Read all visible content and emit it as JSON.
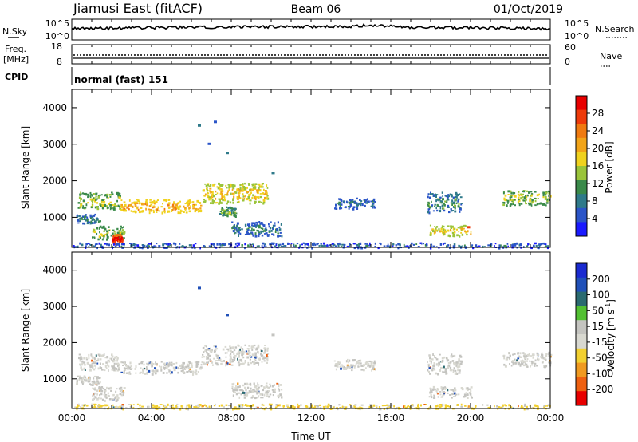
{
  "header": {
    "title": "Jiamusi East (fitACF)",
    "beam": "Beam 06",
    "date": "01/Oct/2019"
  },
  "strips": {
    "nsky_label": "N.Sky",
    "nsearch_label": "N.Search",
    "noise_ticks_left": [
      "10^5",
      "10^0"
    ],
    "noise_ticks_right": [
      "10^5",
      "10^0"
    ],
    "freq_label": "Freq.",
    "freq_unit": "[MHz]",
    "freq_ticks": [
      "18",
      "8"
    ],
    "nave_label": "Nave",
    "nave_ticks": [
      "60",
      "0"
    ],
    "cpid_label": "CPID",
    "cpid_value": "normal (fast) 151"
  },
  "colors": {
    "power": [
      "#1a1aff",
      "#2b55c8",
      "#2f7a8a",
      "#3a8a4a",
      "#9ac43a",
      "#f0d21e",
      "#f2a418",
      "#f07a10",
      "#ee3a0a",
      "#e80000"
    ],
    "velocity": [
      "#1a2ad0",
      "#2050b8",
      "#2a6a70",
      "#52c032",
      "#c4c4c0",
      "#d8d8d0",
      "#f2d030",
      "#f09a20",
      "#ee6010",
      "#e80000"
    ]
  },
  "chart_data": [
    {
      "type": "heatmap",
      "name": "power",
      "ylabel": "Slant Range [km]",
      "xlim": [
        0,
        24
      ],
      "ylim": [
        180,
        4500
      ],
      "yticks": [
        "1000",
        "2000",
        "3000",
        "4000"
      ],
      "colorbar_label": "Power [dB]",
      "colorbar_ticks": [
        "4",
        "8",
        "12",
        "16",
        "20",
        "24",
        "28"
      ],
      "colorbar_range": [
        0,
        30
      ],
      "regions": [
        {
          "t0": 0.3,
          "t1": 2.4,
          "r0": 1250,
          "r1": 1700,
          "level": 14
        },
        {
          "t0": 2.4,
          "t1": 6.5,
          "r0": 1150,
          "r1": 1500,
          "level": 19
        },
        {
          "t0": 6.5,
          "t1": 9.8,
          "r0": 1400,
          "r1": 1950,
          "level": 17
        },
        {
          "t0": 0.2,
          "t1": 1.4,
          "r0": 850,
          "r1": 1100,
          "level": 9
        },
        {
          "t0": 1.0,
          "t1": 2.6,
          "r0": 420,
          "r1": 800,
          "level": 13
        },
        {
          "t0": 2.0,
          "t1": 2.5,
          "r0": 300,
          "r1": 550,
          "level": 27
        },
        {
          "t0": 7.4,
          "t1": 8.2,
          "r0": 1050,
          "r1": 1300,
          "level": 12
        },
        {
          "t0": 8.0,
          "t1": 10.5,
          "r0": 500,
          "r1": 900,
          "level": 8
        },
        {
          "t0": 13.1,
          "t1": 15.2,
          "r0": 1250,
          "r1": 1550,
          "level": 7
        },
        {
          "t0": 17.8,
          "t1": 19.5,
          "r0": 1150,
          "r1": 1700,
          "level": 9
        },
        {
          "t0": 17.9,
          "t1": 20.0,
          "r0": 500,
          "r1": 800,
          "level": 16
        },
        {
          "t0": 21.6,
          "t1": 24.0,
          "r0": 1350,
          "r1": 1750,
          "level": 14
        },
        {
          "t0": 0,
          "t1": 24,
          "r0": 190,
          "r1": 320,
          "level": 6
        }
      ],
      "specks": [
        {
          "t": 6.4,
          "r": 3500,
          "level": 7
        },
        {
          "t": 7.2,
          "r": 3600,
          "level": 5
        },
        {
          "t": 6.9,
          "r": 3000,
          "level": 5
        },
        {
          "t": 7.8,
          "r": 2750,
          "level": 7
        },
        {
          "t": 10.1,
          "r": 2200,
          "level": 8
        },
        {
          "t": 19.9,
          "r": 720,
          "level": 26
        }
      ]
    },
    {
      "type": "heatmap",
      "name": "velocity",
      "xlabel": "Time UT",
      "ylabel": "Slant Range [km]",
      "xlim": [
        0,
        24
      ],
      "ylim": [
        180,
        4500
      ],
      "xticks": [
        "00:00",
        "04:00",
        "08:00",
        "12:00",
        "16:00",
        "20:00",
        "00:00"
      ],
      "yticks": [
        "1000",
        "2000",
        "3000",
        "4000"
      ],
      "colorbar_label": "Velocity [m s",
      "colorbar_label_exponent": "-1",
      "colorbar_label_close": "]",
      "colorbar_ticks": [
        "200",
        "100",
        "50",
        "15",
        "-15",
        "-50",
        "-100",
        "-200"
      ],
      "regions": [
        {
          "t0": 0.3,
          "t1": 2.4,
          "r0": 1250,
          "r1": 1700,
          "level": 0
        },
        {
          "t0": 2.4,
          "t1": 6.5,
          "r0": 1150,
          "r1": 1500,
          "level": 0
        },
        {
          "t0": 6.5,
          "t1": 9.8,
          "r0": 1400,
          "r1": 1950,
          "level": 0
        },
        {
          "t0": 0.2,
          "t1": 1.4,
          "r0": 850,
          "r1": 1100,
          "level": 0
        },
        {
          "t0": 1.0,
          "t1": 2.6,
          "r0": 420,
          "r1": 800,
          "level": 0
        },
        {
          "t0": 8.0,
          "t1": 10.5,
          "r0": 500,
          "r1": 900,
          "level": 0
        },
        {
          "t0": 13.1,
          "t1": 15.2,
          "r0": 1250,
          "r1": 1550,
          "level": 0
        },
        {
          "t0": 17.8,
          "t1": 19.5,
          "r0": 1150,
          "r1": 1700,
          "level": 0
        },
        {
          "t0": 17.9,
          "t1": 20.0,
          "r0": 500,
          "r1": 800,
          "level": 0
        },
        {
          "t0": 21.6,
          "t1": 24.0,
          "r0": 1350,
          "r1": 1750,
          "level": 0
        },
        {
          "t0": 0,
          "t1": 24,
          "r0": 190,
          "r1": 320,
          "level": -20
        }
      ],
      "specks": [
        {
          "t": 6.4,
          "r": 3500,
          "level": 150
        },
        {
          "t": 7.8,
          "r": 2750,
          "level": 120
        },
        {
          "t": 10.1,
          "r": 2200,
          "level": 0
        },
        {
          "t": 8.6,
          "r": 600,
          "level": 60
        }
      ]
    }
  ]
}
